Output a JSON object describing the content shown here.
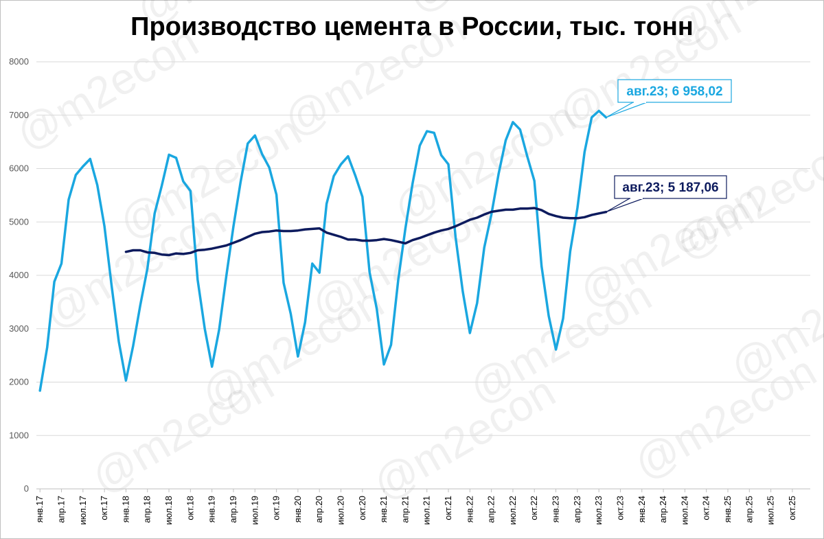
{
  "chart_data": {
    "type": "line",
    "title": "Производство цемента в России, тыс. тонн",
    "watermark": "@m2econ",
    "ylim": [
      0,
      8000
    ],
    "yticks": [
      0,
      1000,
      2000,
      3000,
      4000,
      5000,
      6000,
      7000,
      8000
    ],
    "xtick_labels": [
      "янв.17",
      "апр.17",
      "июл.17",
      "окт.17",
      "янв.18",
      "апр.18",
      "июл.18",
      "окт.18",
      "янв.19",
      "апр.19",
      "июл.19",
      "окт.19",
      "янв.20",
      "апр.20",
      "июл.20",
      "окт.20",
      "янв.21",
      "апр.21",
      "июл.21",
      "окт.21",
      "янв.22",
      "апр.22",
      "июл.22",
      "окт.22",
      "янв.23",
      "апр.23",
      "июл.23",
      "окт.23",
      "янв.24",
      "апр.24",
      "июл.24",
      "окт.24",
      "янв.25",
      "апр.25",
      "июл.25",
      "окт.25"
    ],
    "n_periods": 108,
    "grid": "horizontal",
    "series": [
      {
        "color": "#1aa7e0",
        "start_index": 0,
        "values": [
          1840,
          2650,
          3880,
          4220,
          5420,
          5880,
          6040,
          6180,
          5690,
          4920,
          3800,
          2760,
          2030,
          2680,
          3440,
          4130,
          5160,
          5680,
          6260,
          6200,
          5760,
          5580,
          3920,
          3000,
          2290,
          2980,
          3980,
          4920,
          5750,
          6470,
          6620,
          6270,
          6020,
          5510,
          3860,
          3280,
          2480,
          3120,
          4220,
          4050,
          5340,
          5860,
          6080,
          6230,
          5870,
          5470,
          4060,
          3370,
          2330,
          2700,
          3920,
          4880,
          5720,
          6430,
          6700,
          6670,
          6250,
          6080,
          4710,
          3700,
          2920,
          3480,
          4520,
          5140,
          5900,
          6530,
          6870,
          6730,
          6230,
          5770,
          4170,
          3240,
          2610,
          3190,
          4450,
          5260,
          6310,
          6960,
          7080,
          6958.02
        ]
      },
      {
        "color": "#0d1b5e",
        "start_index": 12,
        "values": [
          4440,
          4470,
          4470,
          4430,
          4420,
          4390,
          4380,
          4410,
          4400,
          4420,
          4470,
          4480,
          4500,
          4530,
          4560,
          4610,
          4660,
          4720,
          4780,
          4810,
          4820,
          4840,
          4830,
          4830,
          4840,
          4860,
          4870,
          4880,
          4800,
          4760,
          4720,
          4670,
          4670,
          4650,
          4650,
          4660,
          4680,
          4660,
          4630,
          4600,
          4660,
          4700,
          4750,
          4800,
          4840,
          4870,
          4920,
          4980,
          5040,
          5080,
          5140,
          5190,
          5210,
          5230,
          5230,
          5250,
          5250,
          5260,
          5220,
          5150,
          5110,
          5080,
          5070,
          5070,
          5090,
          5130,
          5160,
          5187.06
        ]
      }
    ],
    "callouts": [
      {
        "text": "авг.23; 6 958,02",
        "series": 0,
        "color": "#1aa7e0"
      },
      {
        "text": "авг.23; 5 187,06",
        "series": 1,
        "color": "#0d1b5e"
      }
    ]
  }
}
